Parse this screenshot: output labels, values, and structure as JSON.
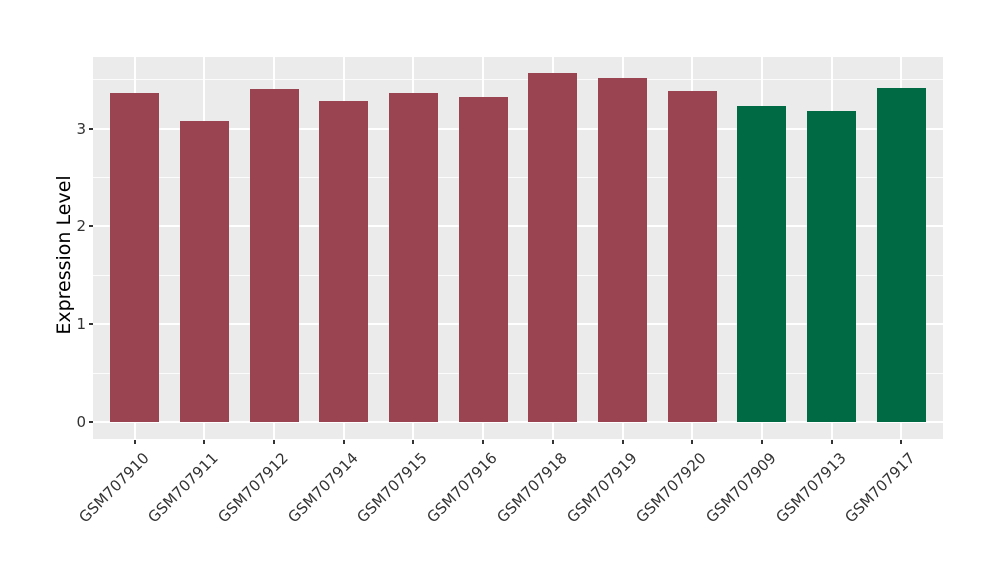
{
  "chart_data": {
    "type": "bar",
    "title": "",
    "xlabel": "",
    "ylabel": "Expression Level",
    "categories": [
      "GSM707910",
      "GSM707911",
      "GSM707912",
      "GSM707914",
      "GSM707915",
      "GSM707916",
      "GSM707918",
      "GSM707919",
      "GSM707920",
      "GSM707909",
      "GSM707913",
      "GSM707917"
    ],
    "values": [
      3.36,
      3.08,
      3.4,
      3.28,
      3.36,
      3.32,
      3.57,
      3.52,
      3.38,
      3.23,
      3.18,
      3.41
    ],
    "bar_colors": [
      "#9B4451",
      "#9B4451",
      "#9B4451",
      "#9B4451",
      "#9B4451",
      "#9B4451",
      "#9B4451",
      "#9B4451",
      "#9B4451",
      "#006A45",
      "#006A45",
      "#006A45"
    ],
    "yticks": [
      0,
      1,
      2,
      3
    ],
    "ytick_labels": [
      "0",
      "1",
      "2",
      "3"
    ],
    "minor_yticks": [
      0.5,
      1.5,
      2.5,
      3.5
    ],
    "ylim": [
      -0.17,
      3.73
    ],
    "bar_width_fraction": 0.7,
    "panel_background": "#EBEBEB",
    "gridline_color": "#FFFFFF",
    "axis_text_color": "#333333",
    "legend": "none",
    "grid": "major and minor horizontal, major vertical at category centers"
  }
}
